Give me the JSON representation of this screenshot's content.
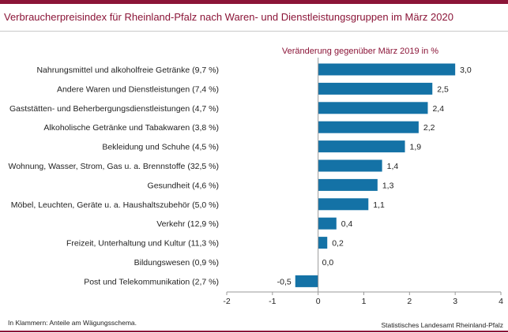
{
  "header": {
    "title": "Verbraucherpreisindex  für Rheinland-Pfalz  nach Waren- und Dienstleistungsgruppen  im März 2020"
  },
  "footer": {
    "note": "In Klammern:  Anteile am Wägungsschema.",
    "source": "Statistisches  Landesamt  Rheinland-Pfalz"
  },
  "colors": {
    "brand": "#8b1538",
    "bar": "#1472a6",
    "text": "#222222",
    "axis": "#9a9a9a"
  },
  "chart_data": {
    "type": "bar",
    "orientation": "horizontal",
    "title": "Verbraucherpreisindex  für Rheinland-Pfalz  nach Waren- und Dienstleistungsgruppen  im März 2020",
    "value_label_header": "Veränderung  gegenüber  März 2019 in %",
    "categories": [
      "Nahrungsmittel und alkoholfreie Getränke (9,7 %)",
      "Andere Waren und Dienstleistungen (7,4 %)",
      "Gaststätten- und Beherbergungsdienstleistungen (4,7 %)",
      "Alkoholische Getränke und Tabakwaren (3,8 %)",
      "Bekleidung und Schuhe (4,5 %)",
      "Wohnung, Wasser, Strom, Gas u. a. Brennstoffe (32,5 %)",
      "Gesundheit (4,6 %)",
      "Möbel, Leuchten, Geräte u. a. Haushaltszubehör  (5,0 %)",
      "Verkehr (12,9 %)",
      "Freizeit, Unterhaltung und Kultur (11,3 %)",
      "Bildungswesen (0,9 %)",
      "Post und Telekommunikation (2,7 %)"
    ],
    "values": [
      3.0,
      2.5,
      2.4,
      2.2,
      1.9,
      1.4,
      1.3,
      1.1,
      0.4,
      0.2,
      0.0,
      -0.5
    ],
    "value_labels": [
      "3,0",
      "2,5",
      "2,4",
      "2,2",
      "1,9",
      "1,4",
      "1,3",
      "1,1",
      "0,4",
      "0,2",
      "0,0",
      "-0,5"
    ],
    "xlim": [
      -2,
      4
    ],
    "xticks": [
      -2,
      -1,
      0,
      1,
      2,
      3,
      4
    ],
    "xtick_labels": [
      "-2",
      "-1",
      "0",
      "1",
      "2",
      "3",
      "4"
    ],
    "grid": false,
    "legend": "none"
  }
}
